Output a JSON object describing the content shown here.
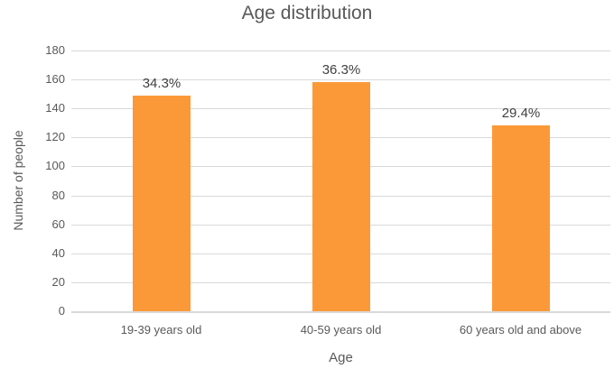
{
  "chart_data": {
    "type": "bar",
    "title": "Age distribution",
    "xlabel": "Age",
    "ylabel": "Number of people",
    "categories": [
      "19-39 years old",
      "40-59 years old",
      "60 years old and above"
    ],
    "series": [
      {
        "name": "Number of people",
        "values": [
          149,
          158,
          128
        ]
      }
    ],
    "bar_value_labels": [
      "34.3%",
      "36.3%",
      "29.4%"
    ],
    "ylim": [
      0,
      180
    ],
    "ytick_interval": 20,
    "ytick_labels": [
      "0",
      "20",
      "40",
      "60",
      "80",
      "100",
      "120",
      "140",
      "160",
      "180"
    ],
    "grid": "horizontal gridlines on",
    "legend": "none",
    "colors": {
      "bar": "#FB9939",
      "title_text": "#595959",
      "axis_text": "#595959",
      "value_label_text": "#404040",
      "gridline": "#D9D9D9"
    }
  }
}
